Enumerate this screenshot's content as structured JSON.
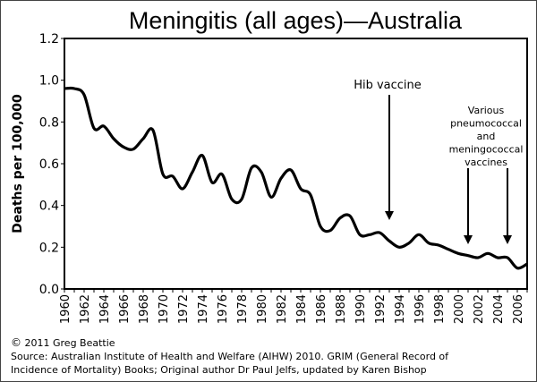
{
  "chart_data": {
    "type": "line",
    "title": "Meningitis (all ages)—Australia",
    "xlabel": "",
    "ylabel": "Deaths per 100,000",
    "xlim": [
      1960,
      2007
    ],
    "ylim": [
      0,
      1.2
    ],
    "yticks": [
      "0.0",
      "0.2",
      "0.4",
      "0.6",
      "0.8",
      "1.0",
      "1.2"
    ],
    "xticks": [
      "1960",
      "1962",
      "1964",
      "1966",
      "1968",
      "1970",
      "1972",
      "1974",
      "1976",
      "1978",
      "1980",
      "1982",
      "1984",
      "1986",
      "1988",
      "1990",
      "1992",
      "1994",
      "1996",
      "1998",
      "2000",
      "2002",
      "2004",
      "2006"
    ],
    "grid": false,
    "x": [
      1960,
      1961,
      1962,
      1963,
      1964,
      1965,
      1966,
      1967,
      1968,
      1969,
      1970,
      1971,
      1972,
      1973,
      1974,
      1975,
      1976,
      1977,
      1978,
      1979,
      1980,
      1981,
      1982,
      1983,
      1984,
      1985,
      1986,
      1987,
      1988,
      1989,
      1990,
      1991,
      1992,
      1993,
      1994,
      1995,
      1996,
      1997,
      1998,
      1999,
      2000,
      2001,
      2002,
      2003,
      2004,
      2005,
      2006,
      2007
    ],
    "values": [
      0.96,
      0.96,
      0.93,
      0.77,
      0.78,
      0.72,
      0.68,
      0.67,
      0.72,
      0.76,
      0.55,
      0.54,
      0.48,
      0.56,
      0.64,
      0.51,
      0.55,
      0.43,
      0.43,
      0.58,
      0.56,
      0.44,
      0.53,
      0.57,
      0.48,
      0.45,
      0.3,
      0.28,
      0.34,
      0.35,
      0.26,
      0.26,
      0.27,
      0.23,
      0.2,
      0.22,
      0.26,
      0.22,
      0.21,
      0.19,
      0.17,
      0.16,
      0.15,
      0.17,
      0.15,
      0.15,
      0.1,
      0.12
    ],
    "annotations": [
      {
        "text": "Hib vaccine",
        "x": 1993
      },
      {
        "text": "Various\npneumococcal\nand\nmeningococcal\nvaccines",
        "x": [
          2001,
          2005
        ]
      }
    ],
    "line_color": "#000000"
  },
  "footer": {
    "copyright_symbol": "©",
    "copyright": "2011 Greg Beattie",
    "source_line1": "Source: Australian Institute of Health and Welfare (AIHW) 2010. GRIM (General Record of",
    "source_line2": "Incidence of Mortality) Books; Original author Dr Paul Jelfs, updated by Karen Bishop"
  }
}
